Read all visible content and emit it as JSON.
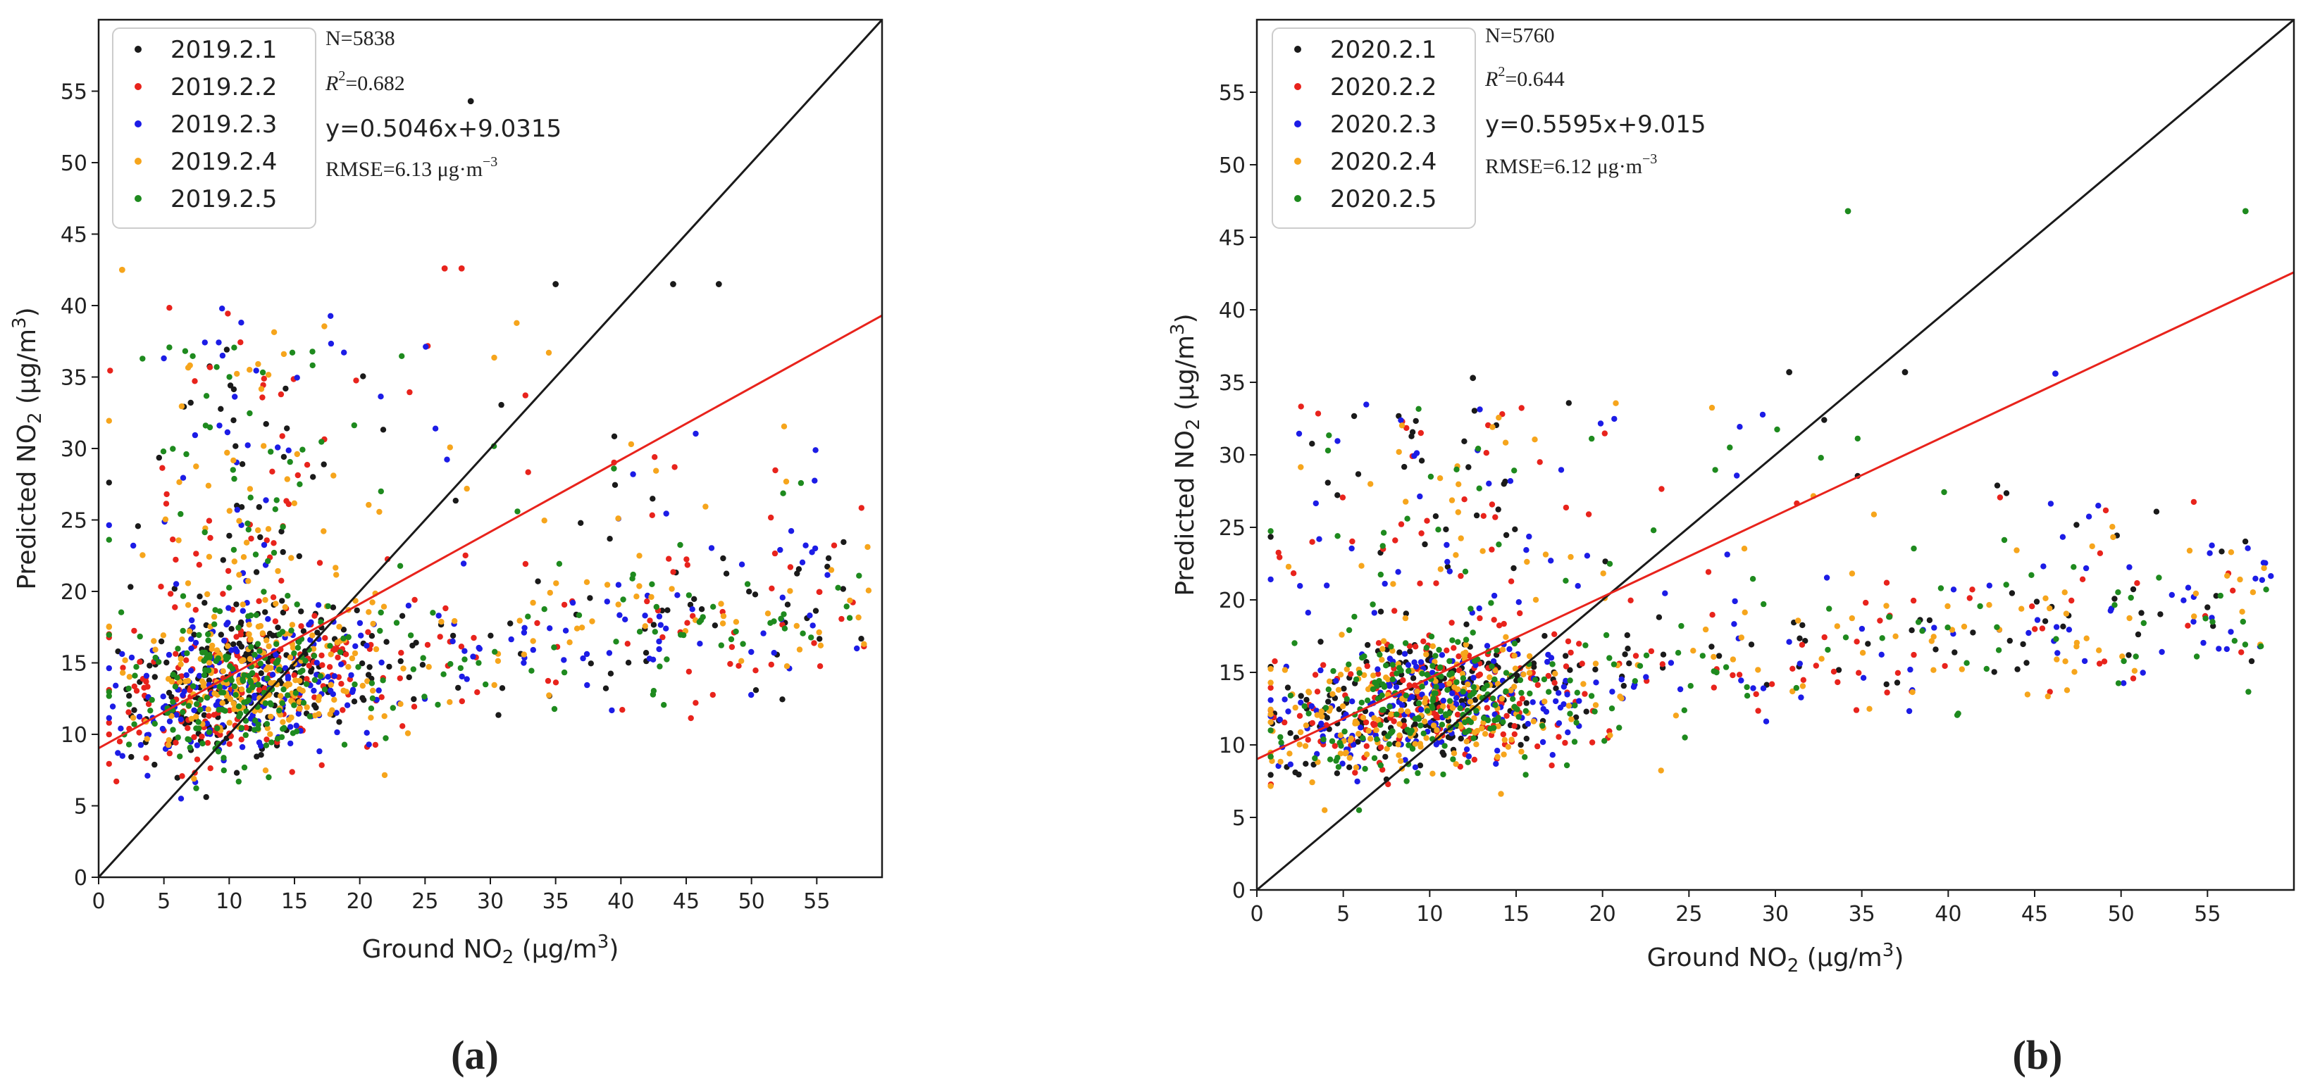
{
  "chart_data": [
    {
      "type": "scatter",
      "panel_label": "(a)",
      "xlabel_pre": "Ground NO",
      "xlabel_sub": "2",
      "xlabel_post": " (μg/m",
      "xlabel_sup": "3",
      "xlabel_end": ")",
      "ylabel_pre": "Predicted NO",
      "ylabel_sub": "2",
      "ylabel_post": " (μg/m",
      "ylabel_sup": "3",
      "ylabel_end": ")",
      "xlim": [
        0,
        60
      ],
      "ylim": [
        0,
        60
      ],
      "xticks": [
        0,
        5,
        10,
        15,
        20,
        25,
        30,
        35,
        40,
        45,
        50,
        55
      ],
      "yticks": [
        0,
        5,
        10,
        15,
        20,
        25,
        30,
        35,
        40,
        45,
        50,
        55
      ],
      "legend_position": "top-left",
      "series": [
        {
          "name": "2019.2.1",
          "color": "#1a1a1a"
        },
        {
          "name": "2019.2.2",
          "color": "#e8231c"
        },
        {
          "name": "2019.2.3",
          "color": "#1c1ce6"
        },
        {
          "name": "2019.2.4",
          "color": "#f6a51c"
        },
        {
          "name": "2019.2.5",
          "color": "#1e8a1e"
        }
      ],
      "stats": {
        "n": "N=5838",
        "r2_label": "R",
        "r2_sup": "2",
        "r2_value": "=0.682",
        "equation": "y=0.5046x+9.0315",
        "rmse_pre": "RMSE=6.13 μg·m",
        "rmse_sup": "−3"
      },
      "fit_line": {
        "slope": 0.5046,
        "intercept": 9.0315,
        "color": "#e8231c"
      },
      "identity_line": {
        "slope": 1,
        "intercept": 0,
        "color": "#1a1a1a"
      },
      "cloud": {
        "seed": 17,
        "count_per_series": 300,
        "x_mode": 11,
        "x_max": 59,
        "y_center": 13.5,
        "y_spread": 3.6,
        "y_slope": 0.12,
        "upper_max": 42.5
      },
      "notable_points": [
        {
          "x": 1.8,
          "y": 42.5,
          "series": 3
        },
        {
          "x": 28.5,
          "y": 54.3,
          "series": 0
        },
        {
          "x": 35,
          "y": 41.5,
          "series": 0
        },
        {
          "x": 44,
          "y": 41.5,
          "series": 0
        },
        {
          "x": 47.5,
          "y": 41.5,
          "series": 0
        },
        {
          "x": 26.5,
          "y": 42.6,
          "series": 1
        },
        {
          "x": 27.8,
          "y": 42.6,
          "series": 1
        }
      ]
    },
    {
      "type": "scatter",
      "panel_label": "(b)",
      "xlabel_pre": "Ground NO",
      "xlabel_sub": "2",
      "xlabel_post": " (μg/m",
      "xlabel_sup": "3",
      "xlabel_end": ")",
      "ylabel_pre": "Predicted NO",
      "ylabel_sub": "2",
      "ylabel_post": " (μg/m",
      "ylabel_sup": "3",
      "ylabel_end": ")",
      "xlim": [
        0,
        60
      ],
      "ylim": [
        0,
        60
      ],
      "xticks": [
        0,
        5,
        10,
        15,
        20,
        25,
        30,
        35,
        40,
        45,
        50,
        55
      ],
      "yticks": [
        0,
        5,
        10,
        15,
        20,
        25,
        30,
        35,
        40,
        45,
        50,
        55
      ],
      "legend_position": "top-left",
      "series": [
        {
          "name": "2020.2.1",
          "color": "#1a1a1a"
        },
        {
          "name": "2020.2.2",
          "color": "#e8231c"
        },
        {
          "name": "2020.2.3",
          "color": "#1c1ce6"
        },
        {
          "name": "2020.2.4",
          "color": "#f6a51c"
        },
        {
          "name": "2020.2.5",
          "color": "#1e8a1e"
        }
      ],
      "stats": {
        "n": "N=5760",
        "r2_label": "R",
        "r2_sup": "2",
        "r2_value": "=0.644",
        "equation": "y=0.5595x+9.015",
        "rmse_pre": "RMSE=6.12 μg·m",
        "rmse_sup": "−3"
      },
      "fit_line": {
        "slope": 0.5595,
        "intercept": 9.015,
        "color": "#e8231c"
      },
      "identity_line": {
        "slope": 1,
        "intercept": 0,
        "color": "#1a1a1a"
      },
      "cloud": {
        "seed": 29,
        "count_per_series": 290,
        "x_mode": 10,
        "x_max": 59,
        "y_center": 12.8,
        "y_spread": 3.2,
        "y_slope": 0.14,
        "upper_max": 36
      },
      "notable_points": [
        {
          "x": 34.2,
          "y": 46.8,
          "series": 4
        },
        {
          "x": 57.2,
          "y": 46.8,
          "series": 4
        },
        {
          "x": 37.5,
          "y": 35.7,
          "series": 0
        },
        {
          "x": 46.2,
          "y": 35.6,
          "series": 2
        },
        {
          "x": 30.8,
          "y": 35.7,
          "series": 0
        },
        {
          "x": 12.5,
          "y": 35.3,
          "series": 0
        }
      ]
    }
  ]
}
